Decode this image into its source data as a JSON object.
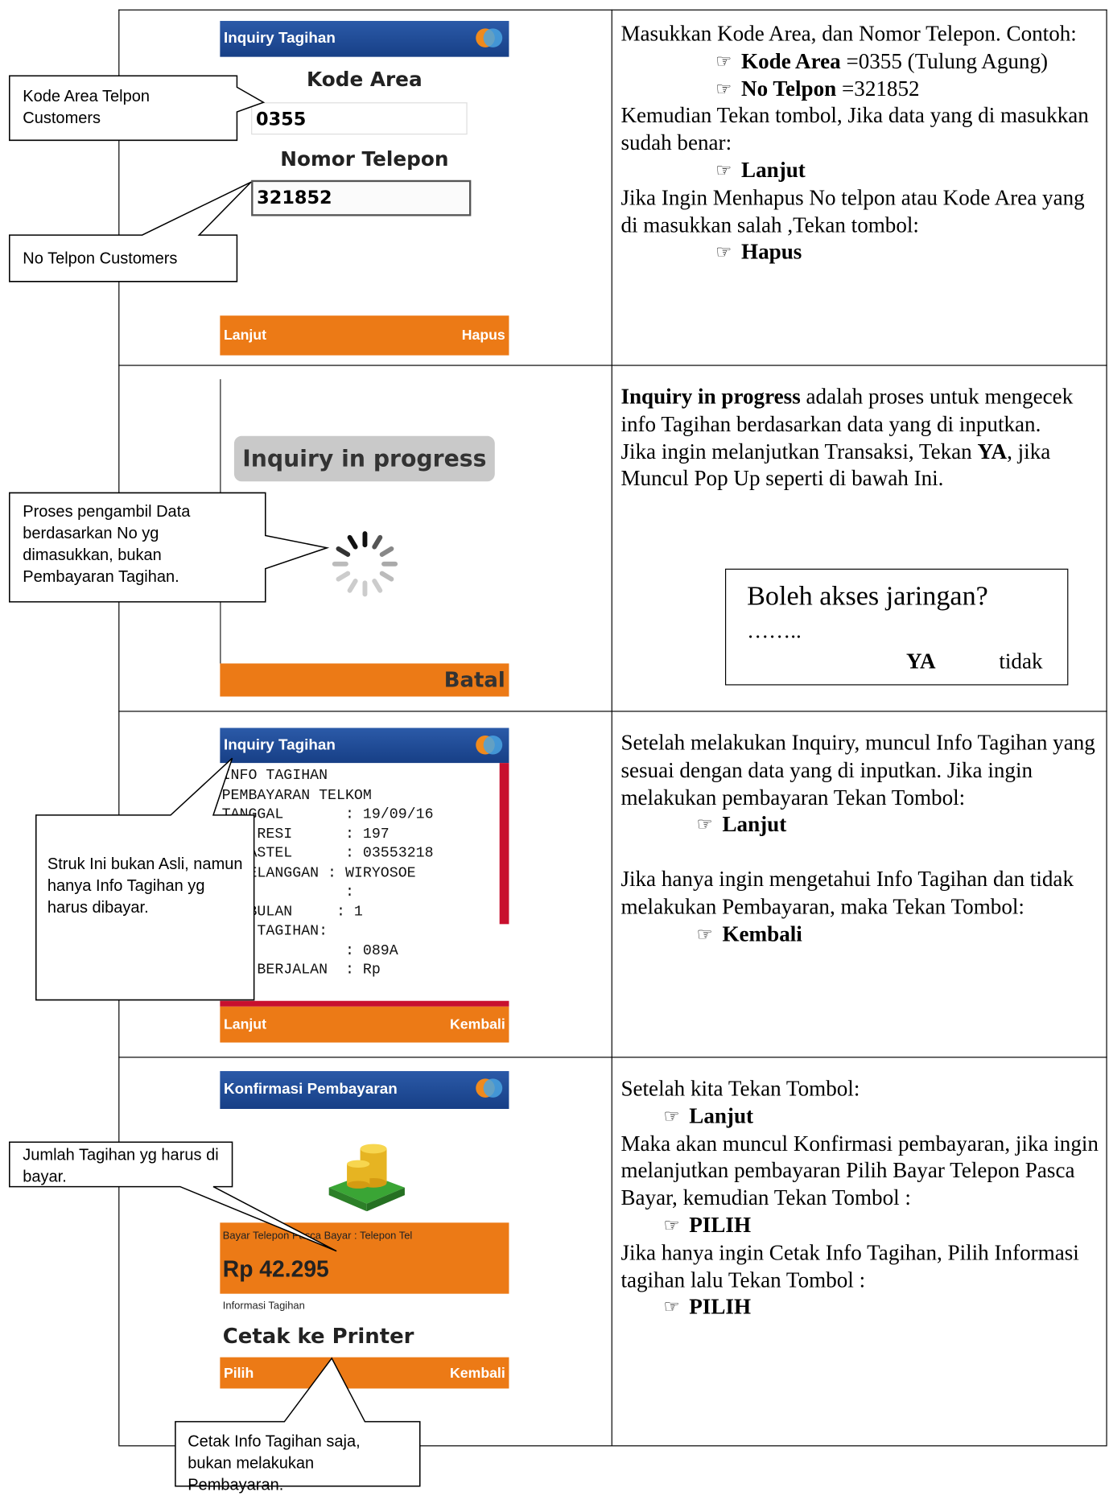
{
  "rows": [
    {
      "screen": {
        "title": "Inquiry Tagihan",
        "field_1_label": "Kode Area",
        "field_1_value": "0355",
        "field_2_label": "Nomor Telepon",
        "field_2_value": "321852",
        "left_key": "Lanjut",
        "right_key": "Hapus"
      },
      "callouts": [
        "Kode Area Telpon Customers",
        "No Telpon Customers"
      ],
      "description": [
        {
          "parts": [
            {
              "text": "Masukkan Kode Area, dan Nomor Telepon. Contoh:"
            }
          ]
        },
        {
          "bullet": true,
          "parts": [
            {
              "text": "Kode Area",
              "bold": true
            },
            {
              "text": " =0355 (Tulung Agung)"
            }
          ]
        },
        {
          "bullet": true,
          "parts": [
            {
              "text": "No Telpon",
              "bold": true
            },
            {
              "text": " =321852"
            }
          ]
        },
        {
          "parts": [
            {
              "text": "Kemudian Tekan tombol, Jika data yang di masukkan sudah benar:"
            }
          ]
        },
        {
          "bullet": true,
          "parts": [
            {
              "text": "Lanjut",
              "bold": true
            }
          ]
        },
        {
          "parts": [
            {
              "text": "Jika Ingin Menhapus No telpon atau Kode Area yang di masukkan salah ,Tekan tombol:"
            }
          ]
        },
        {
          "bullet": true,
          "parts": [
            {
              "text": "Hapus",
              "bold": true
            }
          ]
        }
      ]
    },
    {
      "screen": {
        "status": "Inquiry in progress",
        "right_key": "Batal"
      },
      "callouts": [
        "Proses pengambil Data berdasarkan No yg dimasukkan, bukan Pembayaran Tagihan."
      ],
      "description": [
        {
          "parts": [
            {
              "text": "Inquiry in progress",
              "bold": true
            },
            {
              "text": " adalah proses untuk mengecek info Tagihan berdasarkan data yang di inputkan."
            }
          ]
        },
        {
          "parts": [
            {
              "text": "Jika ingin melanjutkan Transaksi, Tekan "
            },
            {
              "text": "YA",
              "bold": true
            },
            {
              "text": ", jika Muncul Pop Up seperti di bawah Ini."
            }
          ]
        }
      ],
      "popup": {
        "question": "Boleh akses jaringan?",
        "dots": "……..",
        "yes": "YA",
        "no": "tidak"
      }
    },
    {
      "screen": {
        "title": "Inquiry Tagihan",
        "receipt": [
          "INFO TAGIHAN",
          "PEMBAYARAN TELKOM",
          "TANGGAL       : 19/09/16",
          "NO. RESI      : 197",
          "  JASTEL      : 03553218",
          "  PELANGGAN : WIRYOSOE",
          "              :",
          "AH BULAN     : 1",
          "IAN TAGIHAN:",
          "  1           : 089A",
          "BLN BERJALAN  : Rp"
        ],
        "left_key": "Lanjut",
        "right_key": "Kembali"
      },
      "callouts": [
        "Struk Ini bukan Asli, namun hanya Info Tagihan yg harus dibayar."
      ],
      "description": [
        {
          "parts": [
            {
              "text": "Setelah melakukan Inquiry, muncul Info Tagihan yang sesuai dengan data yang di inputkan. Jika ingin melakukan pembayaran Tekan Tombol:"
            }
          ]
        },
        {
          "bullet": true,
          "parts": [
            {
              "text": "Lanjut",
              "bold": true
            }
          ]
        },
        {
          "parts": [
            {
              "text": "Jika hanya ingin mengetahui Info Tagihan dan tidak melakukan Pembayaran, maka Tekan Tombol:"
            }
          ]
        },
        {
          "bullet": true,
          "parts": [
            {
              "text": "Kembali",
              "bold": true
            }
          ]
        }
      ]
    },
    {
      "screen": {
        "title": "Konfirmasi Pembayaran",
        "item_label": "Bayar Telepon Pasca Bayar : Telepon Tel",
        "amount": "Rp 42.295",
        "info_label": "Informasi Tagihan",
        "action": "Cetak ke Printer",
        "left_key": "Pilih",
        "right_key": "Kembali"
      },
      "callouts": [
        "Jumlah Tagihan yg harus di bayar.",
        "Cetak Info Tagihan saja, bukan melakukan Pembayaran."
      ],
      "description": [
        {
          "parts": [
            {
              "text": "Setelah kita Tekan Tombol:"
            }
          ]
        },
        {
          "bullet": true,
          "parts": [
            {
              "text": "Lanjut",
              "bold": true
            }
          ]
        },
        {
          "parts": [
            {
              "text": "Maka akan muncul Konfirmasi pembayaran, jika ingin melanjutkan pembayaran Pilih Bayar Telepon Pasca Bayar, kemudian Tekan Tombol :"
            }
          ]
        },
        {
          "bullet": true,
          "parts": [
            {
              "text": "PILIH",
              "bold": true
            }
          ]
        },
        {
          "parts": [
            {
              "text": "Jika hanya ingin Cetak Info Tagihan, Pilih Informasi tagihan lalu Tekan Tombol :"
            }
          ]
        },
        {
          "bullet": true,
          "parts": [
            {
              "text": "PILIH",
              "bold": true
            }
          ]
        }
      ]
    }
  ]
}
